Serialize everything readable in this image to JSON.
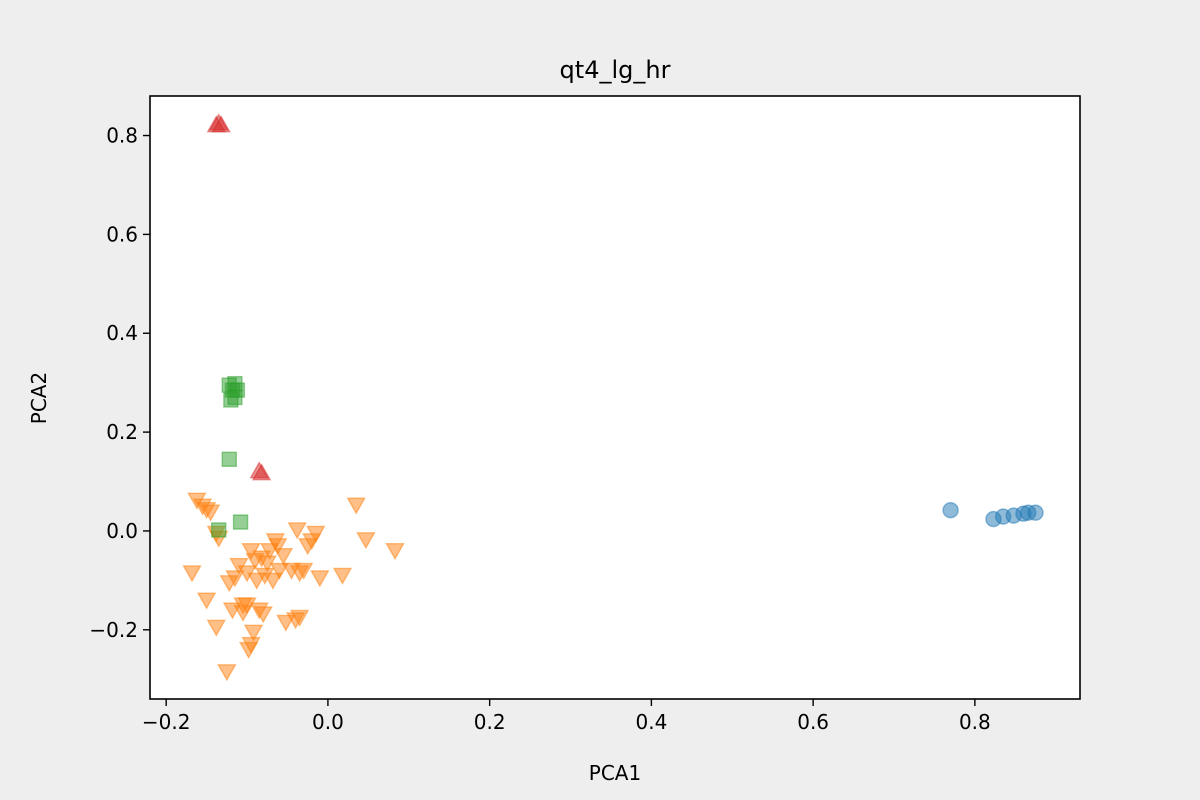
{
  "chart_data": {
    "type": "scatter",
    "title": "qt4_lg_hr",
    "xlabel": "PCA1",
    "ylabel": "PCA2",
    "xlim": [
      -0.22,
      0.93
    ],
    "ylim": [
      -0.34,
      0.88
    ],
    "xticks": [
      -0.2,
      0.0,
      0.2,
      0.4,
      0.6,
      0.8
    ],
    "xtick_labels": [
      "−0.2",
      "0.0",
      "0.2",
      "0.4",
      "0.6",
      "0.8"
    ],
    "yticks": [
      -0.2,
      0.0,
      0.2,
      0.4,
      0.6,
      0.8
    ],
    "ytick_labels": [
      "−0.2",
      "0.0",
      "0.2",
      "0.4",
      "0.6",
      "0.8"
    ],
    "grid": false,
    "series": [
      {
        "marker": "circle",
        "color": "#1f77b4",
        "points": [
          [
            0.77,
            0.042
          ],
          [
            0.823,
            0.024
          ],
          [
            0.835,
            0.029
          ],
          [
            0.848,
            0.031
          ],
          [
            0.86,
            0.035
          ],
          [
            0.866,
            0.037
          ],
          [
            0.875,
            0.037
          ]
        ]
      },
      {
        "marker": "triangle-down",
        "color": "#ff7f0e",
        "points": [
          [
            -0.162,
            0.062
          ],
          [
            -0.155,
            0.05
          ],
          [
            -0.15,
            0.043
          ],
          [
            -0.145,
            0.038
          ],
          [
            -0.138,
            -0.005
          ],
          [
            -0.135,
            -0.015
          ],
          [
            -0.168,
            -0.085
          ],
          [
            -0.15,
            -0.14
          ],
          [
            -0.138,
            -0.195
          ],
          [
            -0.125,
            -0.285
          ],
          [
            -0.122,
            -0.105
          ],
          [
            -0.118,
            -0.16
          ],
          [
            -0.115,
            -0.095
          ],
          [
            -0.11,
            -0.07
          ],
          [
            -0.105,
            -0.15
          ],
          [
            -0.105,
            -0.165
          ],
          [
            -0.1,
            -0.15
          ],
          [
            -0.098,
            -0.24
          ],
          [
            -0.095,
            -0.23
          ],
          [
            -0.092,
            -0.205
          ],
          [
            -0.1,
            -0.085
          ],
          [
            -0.095,
            -0.04
          ],
          [
            -0.09,
            -0.06
          ],
          [
            -0.088,
            -0.1
          ],
          [
            -0.085,
            -0.16
          ],
          [
            -0.082,
            -0.055
          ],
          [
            -0.08,
            -0.168
          ],
          [
            -0.078,
            -0.09
          ],
          [
            -0.075,
            -0.065
          ],
          [
            -0.072,
            -0.04
          ],
          [
            -0.068,
            -0.1
          ],
          [
            -0.065,
            -0.02
          ],
          [
            -0.062,
            -0.03
          ],
          [
            -0.06,
            -0.08
          ],
          [
            -0.055,
            -0.05
          ],
          [
            -0.052,
            -0.185
          ],
          [
            -0.045,
            -0.08
          ],
          [
            -0.04,
            -0.18
          ],
          [
            -0.035,
            -0.175
          ],
          [
            -0.035,
            -0.085
          ],
          [
            -0.03,
            -0.08
          ],
          [
            -0.038,
            0.002
          ],
          [
            -0.025,
            -0.03
          ],
          [
            -0.02,
            -0.02
          ],
          [
            -0.015,
            -0.005
          ],
          [
            -0.01,
            -0.095
          ],
          [
            0.018,
            -0.09
          ],
          [
            0.035,
            0.052
          ],
          [
            0.047,
            -0.018
          ],
          [
            0.083,
            -0.04
          ]
        ]
      },
      {
        "marker": "square",
        "color": "#2ca02c",
        "points": [
          [
            -0.122,
            0.295
          ],
          [
            -0.115,
            0.298
          ],
          [
            -0.118,
            0.285
          ],
          [
            -0.112,
            0.285
          ],
          [
            -0.12,
            0.265
          ],
          [
            -0.115,
            0.27
          ],
          [
            -0.122,
            0.145
          ],
          [
            -0.108,
            0.018
          ],
          [
            -0.135,
            0.002
          ]
        ]
      },
      {
        "marker": "triangle-up",
        "color": "#d62728",
        "points": [
          [
            -0.138,
            0.822
          ],
          [
            -0.135,
            0.826
          ],
          [
            -0.132,
            0.822
          ],
          [
            -0.085,
            0.122
          ],
          [
            -0.082,
            0.118
          ]
        ]
      }
    ]
  }
}
